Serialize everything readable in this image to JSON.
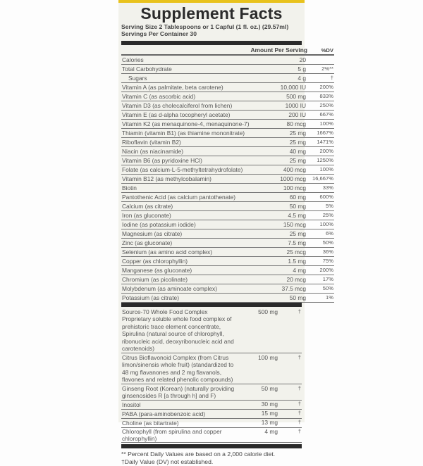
{
  "title": "Supplement Facts",
  "serving_size": "Serving Size 2 Tablespoons or 1 Capful (1 fl. oz.) (29.57ml)",
  "servings_per_container": "Servings Per Container 30",
  "header": {
    "amount": "Amount Per Serving",
    "dv": "%DV"
  },
  "rows": [
    {
      "name": "Calories",
      "amount": "20",
      "dv": ""
    },
    {
      "name": "Total Carbohydrate",
      "amount": "5 g",
      "dv": "2%**"
    },
    {
      "name": "Sugars",
      "amount": "4 g",
      "dv": "†"
    },
    {
      "name": "Vitamin A (as palmitate, beta carotene)",
      "amount": "10,000 IU",
      "dv": "200%"
    },
    {
      "name": "Vitamin C (as ascorbic acid)",
      "amount": "500 mg",
      "dv": "833%"
    },
    {
      "name": "Vitamin D3 (as cholecalciferol from lichen)",
      "amount": "1000 IU",
      "dv": "250%"
    },
    {
      "name": "Vitamin E (as d-alpha tocopheryl acetate)",
      "amount": "200 IU",
      "dv": "667%"
    },
    {
      "name": "Vitamin K2 (as menaquinone-4, menaquinone-7)",
      "amount": "80 mcg",
      "dv": "100%"
    },
    {
      "name": "Thiamin (vitamin B1) (as thiamine mononitrate)",
      "amount": "25 mg",
      "dv": "1667%"
    },
    {
      "name": "Riboflavin (vitamin B2)",
      "amount": "25 mg",
      "dv": "1471%"
    },
    {
      "name": "Niacin (as niacinamide)",
      "amount": "40 mg",
      "dv": "200%"
    },
    {
      "name": "Vitamin B6 (as pyridoxine HCl)",
      "amount": "25 mg",
      "dv": "1250%"
    },
    {
      "name": "Folate (as calcium-L-5-methyltetrahydrofolate)",
      "amount": "400 mcg",
      "dv": "100%"
    },
    {
      "name": "Vitamin B12 (as methylcobalamin)",
      "amount": "1000 mcg",
      "dv": "16,667%"
    },
    {
      "name": "Biotin",
      "amount": "100 mcg",
      "dv": "33%"
    },
    {
      "name": "Pantothenic Acid (as calcium pantothenate)",
      "amount": "60 mg",
      "dv": "600%"
    },
    {
      "name": "Calcium (as citrate)",
      "amount": "50 mg",
      "dv": "5%"
    },
    {
      "name": "Iron (as gluconate)",
      "amount": "4.5 mg",
      "dv": "25%"
    },
    {
      "name": "Iodine (as potassium iodide)",
      "amount": "150 mcg",
      "dv": "100%"
    },
    {
      "name": "Magnesium (as citrate)",
      "amount": "25 mg",
      "dv": "6%"
    },
    {
      "name": "Zinc (as gluconate)",
      "amount": "7.5 mg",
      "dv": "50%"
    },
    {
      "name": "Selenium (as amino acid complex)",
      "amount": "25 mcg",
      "dv": "36%"
    },
    {
      "name": "Copper (as chlorophyllin)",
      "amount": "1.5 mg",
      "dv": "75%"
    },
    {
      "name": "Manganese (as gluconate)",
      "amount": "4 mg",
      "dv": "200%"
    },
    {
      "name": "Chromium (as picolinate)",
      "amount": "20 mcg",
      "dv": "17%"
    },
    {
      "name": "Molybdenum (as aminoate complex)",
      "amount": "37.5 mcg",
      "dv": "50%"
    },
    {
      "name": "Potassium (as citrate)",
      "amount": "50 mg",
      "dv": "1%"
    }
  ],
  "other": [
    {
      "name": "Source-70 Whole Food Complex",
      "desc": "Proprietary soluble whole food complex of prehistoric trace element concentrate, Spirulina (natural source of chlorophyll, ribonucleic acid, deoxyribonucleic acid and carotenoids)",
      "amount": "500 mg",
      "dv": "†"
    },
    {
      "name": "Citrus Bioflavonoid Complex (from Citrus limon/sinensis whole fruit) (standardized to 48 mg flavanones and 2 mg flavanols, flavones and related phenolic compounds)",
      "desc": "",
      "amount": "100 mg",
      "dv": "†"
    },
    {
      "name": "Ginseng Root (Korean) (naturally providing ginsenosides R [a through h] and F)",
      "desc": "",
      "amount": "50 mg",
      "dv": "†"
    },
    {
      "name": "Inositol",
      "desc": "",
      "amount": "30 mg",
      "dv": "†"
    },
    {
      "name": "PABA (para-aminobenzoic acid)",
      "desc": "",
      "amount": "15 mg",
      "dv": "†"
    },
    {
      "name": "Choline (as bitartrate)",
      "desc": "",
      "amount": "13 mg",
      "dv": "†"
    },
    {
      "name": "Chlorophyll (from spirulina and copper chlorophyllin)",
      "desc": "",
      "amount": "4 mg",
      "dv": "†"
    }
  ],
  "footnotes": [
    "** Percent Daily Values are based on a 2,000 calorie diet.",
    "†Daily Value (DV) not established."
  ],
  "colors": {
    "label_bg": "#f2f2ec",
    "bar": "#2a2a2a",
    "accent_yellow": "#e8c21c"
  }
}
